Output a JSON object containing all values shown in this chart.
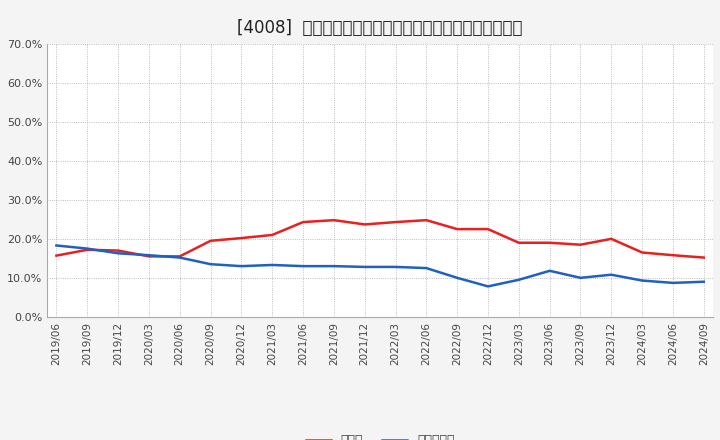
{
  "title": "[4008]  現預金、有利子負債の総資産に対する比率の推移",
  "x_labels": [
    "2019/06",
    "2019/09",
    "2019/12",
    "2020/03",
    "2020/06",
    "2020/09",
    "2020/12",
    "2021/03",
    "2021/06",
    "2021/09",
    "2021/12",
    "2022/03",
    "2022/06",
    "2022/09",
    "2022/12",
    "2023/03",
    "2023/06",
    "2023/09",
    "2023/12",
    "2024/03",
    "2024/06",
    "2024/09"
  ],
  "cash": [
    0.157,
    0.172,
    0.17,
    0.155,
    0.155,
    0.195,
    0.202,
    0.21,
    0.243,
    0.248,
    0.237,
    0.243,
    0.248,
    0.225,
    0.225,
    0.19,
    0.19,
    0.185,
    0.2,
    0.165,
    0.158,
    0.152
  ],
  "interest_bearing_debt": [
    0.183,
    0.175,
    0.163,
    0.158,
    0.152,
    0.135,
    0.13,
    0.133,
    0.13,
    0.13,
    0.128,
    0.128,
    0.125,
    0.1,
    0.078,
    0.095,
    0.118,
    0.1,
    0.108,
    0.093,
    0.087,
    0.09
  ],
  "cash_color": "#e82020",
  "debt_color": "#2060c0",
  "background_color": "#f4f4f4",
  "plot_bg_color": "#ffffff",
  "ylim": [
    0.0,
    0.7
  ],
  "yticks": [
    0.0,
    0.1,
    0.2,
    0.3,
    0.4,
    0.5,
    0.6,
    0.7
  ],
  "legend_cash": "現預金",
  "legend_debt": "有利子負債",
  "title_fontsize": 12,
  "line_width": 1.8
}
